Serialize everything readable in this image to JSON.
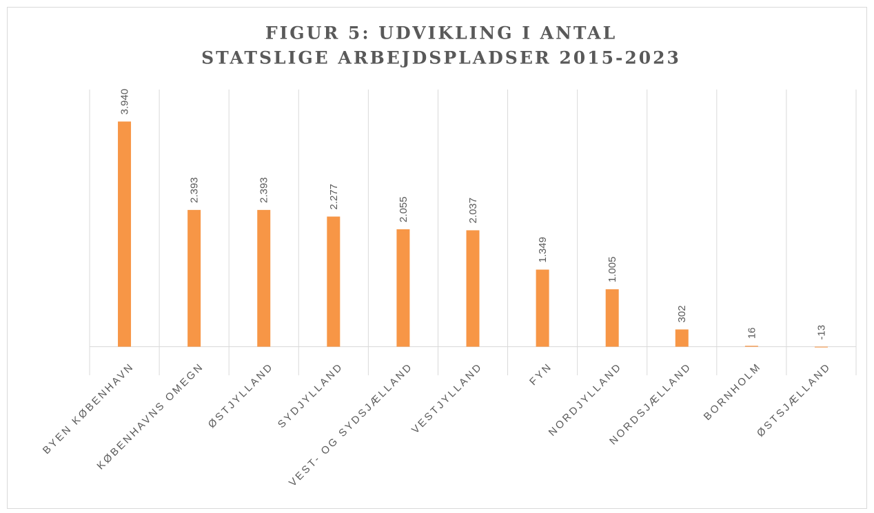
{
  "chart_data": {
    "type": "bar",
    "title": [
      "FIGUR 5: UDVIKLING I ANTAL",
      "STATSLIGE ARBEJDSPLADSER 2015-2023"
    ],
    "categories": [
      "BYEN KØBENHAVN",
      "KØBENHAVNS OMEGN",
      "ØSTJYLLAND",
      "SYDJYLLAND",
      "VEST- OG SYDSJÆLLAND",
      "VESTJYLLAND",
      "FYN",
      "NORDJYLLAND",
      "NORDSJÆLLAND",
      "BORNHOLM",
      "ØSTSJÆLLAND"
    ],
    "values": [
      3940,
      2393,
      2393,
      2277,
      2055,
      2037,
      1349,
      1005,
      302,
      16,
      -13
    ],
    "value_labels": [
      "3.940",
      "2.393",
      "2.393",
      "2.277",
      "2.055",
      "2.037",
      "1.349",
      "1.005",
      "302",
      "16",
      "-13"
    ],
    "color": "#f79646",
    "ylim": [
      -500,
      4500
    ],
    "grid": "vertical"
  }
}
